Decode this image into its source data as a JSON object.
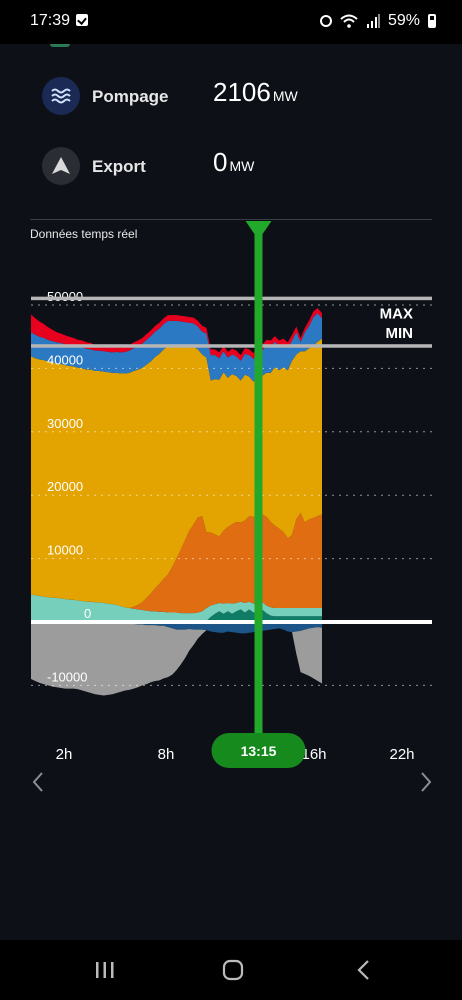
{
  "status_bar": {
    "time": "17:39",
    "battery": "59%"
  },
  "rows": [
    {
      "label": "Pompage",
      "value": "2106",
      "unit": "MW",
      "icon": "waves-icon"
    },
    {
      "label": "Export",
      "value": "0",
      "unit": "MW",
      "icon": "arrow-up-icon"
    }
  ],
  "section": {
    "label": "Données temps réel"
  },
  "colors": {
    "nuclear": "#e3a300",
    "hydro": "#2c79c3",
    "gas": "#e8001f",
    "solar": "#e06d12",
    "wind": "#76cfbb",
    "bio": "#0f7d66",
    "exchange": "#9c9c9c",
    "pumping": "#1c5587",
    "cursor": "#22a82a"
  },
  "cursor": {
    "label": "13:15"
  },
  "chart_data": {
    "type": "area",
    "x_ticks": [
      "2h",
      "8h",
      "16h",
      "22h"
    ],
    "y_ticks": [
      "50000",
      "40000",
      "30000",
      "20000",
      "10000",
      "0",
      "-10000"
    ],
    "ylim": [
      -12500,
      53000
    ],
    "reference_lines": [
      {
        "label": "MAX",
        "value": 51000
      },
      {
        "label": "MIN",
        "value": 43500
      }
    ],
    "x": [
      0,
      1,
      2,
      3,
      4,
      5,
      6,
      7,
      8,
      9,
      10,
      11,
      12,
      13,
      14,
      15,
      16,
      17,
      18,
      19,
      20,
      21,
      22,
      23,
      24,
      25,
      26,
      27,
      28,
      29,
      30,
      31,
      32,
      33,
      34,
      35,
      36,
      37,
      38,
      39,
      40,
      41,
      42,
      43,
      44,
      45,
      46,
      47,
      48,
      49,
      50,
      51,
      52,
      53,
      54,
      55,
      56,
      57,
      58,
      59,
      60,
      61,
      62,
      63,
      64,
      65,
      66,
      67,
      68
    ],
    "series": [
      {
        "key": "bio",
        "values": [
          200,
          200,
          200,
          200,
          200,
          200,
          200,
          200,
          200,
          200,
          200,
          200,
          200,
          200,
          200,
          200,
          200,
          200,
          200,
          200,
          200,
          200,
          200,
          200,
          200,
          200,
          200,
          200,
          200,
          200,
          200,
          200,
          200,
          200,
          200,
          200,
          200,
          200,
          200,
          200,
          200,
          200,
          800,
          1300,
          1700,
          1300,
          1700,
          1300,
          1700,
          2000,
          1500,
          2000,
          1500,
          1600,
          2000,
          1400,
          1000,
          900,
          900,
          900,
          900,
          900,
          900,
          900,
          900,
          900,
          900,
          900,
          900
        ]
      },
      {
        "key": "wind",
        "values": [
          4200,
          4000,
          3900,
          3800,
          3700,
          3600,
          3600,
          3500,
          3400,
          3300,
          3300,
          3200,
          3100,
          3000,
          3000,
          2900,
          2900,
          2800,
          2700,
          2600,
          2500,
          2300,
          2100,
          2000,
          1900,
          1800,
          1700,
          1600,
          1500,
          1500,
          1400,
          1400,
          1300,
          1300,
          1300,
          1200,
          1200,
          1200,
          1200,
          1300,
          1500,
          2000,
          1800,
          1500,
          1300,
          1600,
          1300,
          1600,
          1300,
          1200,
          1500,
          1200,
          1400,
          1300,
          1200,
          1200,
          1300,
          1300,
          1300,
          1300,
          1300,
          1300,
          1300,
          1300,
          1300,
          1300,
          1300,
          1300,
          1300
        ]
      },
      {
        "key": "solar",
        "values": [
          0,
          0,
          0,
          0,
          0,
          0,
          0,
          0,
          0,
          0,
          0,
          0,
          0,
          0,
          0,
          0,
          0,
          0,
          0,
          0,
          0,
          0,
          0,
          0,
          300,
          700,
          1200,
          2000,
          2800,
          3600,
          4400,
          5200,
          6000,
          7200,
          8500,
          10000,
          11500,
          13000,
          14000,
          15000,
          15000,
          12000,
          11500,
          11000,
          10500,
          11500,
          12000,
          12500,
          12800,
          12500,
          13000,
          13500,
          13700,
          14000,
          13800,
          14000,
          13500,
          13000,
          12500,
          12000,
          11000,
          11500,
          14000,
          15000,
          13500,
          14000,
          14200,
          14500,
          14800
        ]
      },
      {
        "key": "nuclear",
        "values": [
          37500,
          37400,
          37300,
          37300,
          37200,
          37100,
          37000,
          37000,
          36900,
          36900,
          36800,
          36700,
          36700,
          36600,
          36600,
          36500,
          36500,
          36500,
          36500,
          36500,
          36600,
          36700,
          36900,
          37100,
          37200,
          37100,
          37000,
          36800,
          36600,
          36500,
          36300,
          36200,
          36000,
          34800,
          33500,
          32000,
          30500,
          29000,
          28000,
          26500,
          25500,
          27500,
          24000,
          24500,
          24700,
          25000,
          23500,
          23700,
          23000,
          22400,
          23000,
          22000,
          21300,
          22000,
          21800,
          22700,
          23500,
          25000,
          25000,
          26000,
          26500,
          27500,
          26000,
          25500,
          27000,
          27000,
          27200,
          27500,
          27700
        ]
      },
      {
        "key": "hydro",
        "values": [
          3800,
          3700,
          3600,
          3500,
          3400,
          3400,
          3300,
          3300,
          3300,
          3300,
          3300,
          3300,
          3300,
          3300,
          3200,
          3200,
          3200,
          3200,
          3200,
          3200,
          3300,
          3300,
          3400,
          3500,
          3600,
          3700,
          3800,
          3900,
          4000,
          4000,
          4000,
          4000,
          4000,
          4000,
          4000,
          4000,
          3900,
          3800,
          3700,
          3600,
          3600,
          3800,
          4000,
          3800,
          3400,
          3300,
          3200,
          3100,
          3100,
          3100,
          3300,
          3400,
          3600,
          3800,
          4000,
          4300,
          4200,
          4000,
          3800,
          3600,
          3500,
          3200,
          3500,
          1500,
          3000,
          3500,
          4500,
          4500,
          3200
        ]
      },
      {
        "key": "gas",
        "values": [
          2800,
          2600,
          2400,
          2200,
          2000,
          1800,
          1600,
          1500,
          1400,
          1300,
          1200,
          1100,
          1100,
          1000,
          1000,
          900,
          900,
          900,
          900,
          900,
          900,
          900,
          900,
          900,
          900,
          900,
          900,
          900,
          900,
          900,
          900,
          900,
          900,
          900,
          900,
          900,
          900,
          900,
          900,
          900,
          900,
          900,
          900,
          900,
          900,
          900,
          900,
          900,
          900,
          900,
          900,
          900,
          900,
          900,
          900,
          900,
          900,
          900,
          900,
          900,
          900,
          900,
          900,
          600,
          700,
          900,
          900,
          800,
          800
        ]
      },
      {
        "key": "pumping",
        "values": [
          0,
          0,
          0,
          0,
          0,
          0,
          0,
          0,
          0,
          0,
          0,
          0,
          0,
          0,
          0,
          0,
          0,
          0,
          0,
          0,
          0,
          0,
          0,
          -200,
          -300,
          -400,
          -400,
          -500,
          -500,
          -500,
          -600,
          -600,
          -800,
          -1000,
          -1200,
          -1200,
          -1200,
          -1100,
          -1200,
          -1200,
          -1200,
          -1300,
          -1500,
          -1600,
          -1700,
          -1700,
          -1500,
          -1600,
          -1700,
          -1800,
          -1800,
          -1700,
          -1600,
          -1500,
          -1400,
          -1300,
          -1200,
          -1100,
          -1000,
          -1200,
          -1500,
          -1600,
          -1500,
          -1400,
          -1200,
          -1000,
          -900,
          -800,
          -900
        ]
      },
      {
        "key": "exchange",
        "values": [
          -9000,
          -9300,
          -9600,
          -9800,
          -10000,
          -10200,
          -10300,
          -10400,
          -10500,
          -10500,
          -10500,
          -10600,
          -10800,
          -11000,
          -11200,
          -11400,
          -11500,
          -11600,
          -11500,
          -11400,
          -11200,
          -11000,
          -10800,
          -10500,
          -10200,
          -9900,
          -9600,
          -9300,
          -9000,
          -8800,
          -8600,
          -8300,
          -7900,
          -7300,
          -6400,
          -5500,
          -4500,
          -3400,
          -2400,
          -1400,
          -700,
          0,
          0,
          0,
          0,
          0,
          0,
          0,
          0,
          0,
          0,
          0,
          0,
          0,
          0,
          0,
          0,
          0,
          0,
          0,
          0,
          0,
          -3500,
          -6500,
          -7000,
          -7500,
          -8000,
          -8500,
          -8800
        ]
      }
    ]
  }
}
